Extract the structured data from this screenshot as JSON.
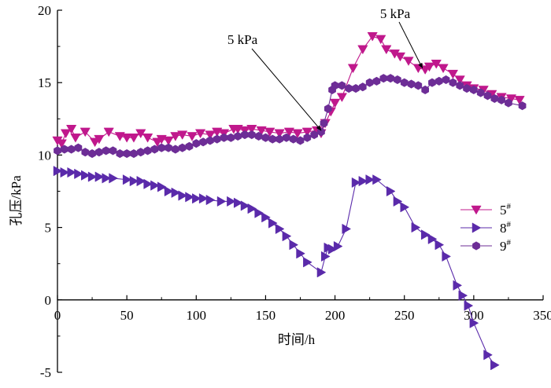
{
  "chart_data": {
    "type": "line",
    "title": "",
    "xlabel": "时间/h",
    "ylabel": "孔压/kPa",
    "xlim": [
      0,
      350
    ],
    "ylim": [
      -5,
      20
    ],
    "xticks": [
      0,
      50,
      100,
      150,
      200,
      250,
      300,
      350
    ],
    "yticks": [
      -5,
      0,
      5,
      10,
      15,
      20
    ],
    "grid": false,
    "legend_position": "right",
    "annotations": [
      {
        "text": "5 kPa",
        "at": [
          190,
          11.7
        ]
      },
      {
        "text": "5 kPa",
        "at": [
          263,
          16.0
        ]
      }
    ],
    "series": [
      {
        "name": "5#",
        "label_main": "5",
        "label_sup": "#",
        "marker": "triangle-down",
        "color": "#c0188c",
        "x": [
          0,
          3,
          6,
          10,
          13,
          20,
          27,
          30,
          37,
          45,
          50,
          55,
          60,
          65,
          72,
          75,
          80,
          85,
          90,
          97,
          103,
          110,
          115,
          120,
          127,
          130,
          135,
          140,
          147,
          153,
          160,
          167,
          173,
          180,
          187,
          190,
          193,
          197,
          200,
          205,
          213,
          220,
          227,
          233,
          237,
          243,
          247,
          253,
          260,
          265,
          268,
          273,
          278,
          285,
          290,
          295,
          300,
          307,
          313,
          320,
          327,
          333
        ],
        "y": [
          11.0,
          10.8,
          11.5,
          11.8,
          11.2,
          11.6,
          10.9,
          11.1,
          11.6,
          11.3,
          11.2,
          11.2,
          11.5,
          11.2,
          10.9,
          11.1,
          11.0,
          11.3,
          11.4,
          11.3,
          11.5,
          11.4,
          11.6,
          11.5,
          11.8,
          11.8,
          11.7,
          11.8,
          11.7,
          11.6,
          11.5,
          11.6,
          11.5,
          11.6,
          11.7,
          11.5,
          12.2,
          13.0,
          13.6,
          14.0,
          16.0,
          17.3,
          18.2,
          18.0,
          17.3,
          17.0,
          16.8,
          16.5,
          16.0,
          15.9,
          16.1,
          16.3,
          16.0,
          15.6,
          15.2,
          14.8,
          14.6,
          14.5,
          14.2,
          14.0,
          13.9,
          13.8
        ]
      },
      {
        "name": "8#",
        "label_main": "8",
        "label_sup": "#",
        "marker": "triangle-right",
        "color": "#5a2aaa",
        "x": [
          0,
          5,
          10,
          15,
          20,
          25,
          30,
          35,
          40,
          50,
          55,
          60,
          65,
          70,
          75,
          80,
          85,
          90,
          95,
          100,
          105,
          110,
          118,
          125,
          130,
          135,
          140,
          145,
          150,
          155,
          160,
          165,
          170,
          175,
          180,
          190,
          193,
          195,
          198,
          202,
          208,
          215,
          220,
          225,
          230,
          240,
          245,
          250,
          258,
          265,
          270,
          275,
          280,
          288,
          292,
          296,
          300,
          310,
          315
        ],
        "y": [
          8.9,
          8.8,
          8.8,
          8.7,
          8.6,
          8.5,
          8.5,
          8.4,
          8.4,
          8.3,
          8.2,
          8.2,
          8.0,
          7.9,
          7.8,
          7.5,
          7.4,
          7.2,
          7.1,
          7.0,
          7.0,
          6.9,
          6.8,
          6.8,
          6.7,
          6.5,
          6.3,
          6.0,
          5.7,
          5.3,
          4.9,
          4.4,
          3.8,
          3.2,
          2.6,
          1.9,
          3.0,
          3.6,
          3.5,
          3.7,
          4.9,
          8.1,
          8.2,
          8.3,
          8.3,
          7.5,
          6.8,
          6.4,
          5.0,
          4.5,
          4.2,
          3.8,
          3.0,
          1.0,
          0.3,
          -0.4,
          -1.6,
          -3.8,
          -4.5
        ]
      },
      {
        "name": "9#",
        "label_main": "9",
        "label_sup": "#",
        "marker": "hexagon",
        "color": "#6d2d96",
        "x": [
          0,
          5,
          10,
          15,
          20,
          25,
          30,
          35,
          40,
          45,
          50,
          55,
          60,
          65,
          70,
          75,
          80,
          85,
          90,
          95,
          100,
          105,
          110,
          115,
          120,
          125,
          130,
          135,
          140,
          145,
          150,
          155,
          160,
          165,
          170,
          175,
          180,
          185,
          190,
          192,
          195,
          198,
          200,
          205,
          210,
          215,
          220,
          225,
          230,
          235,
          240,
          245,
          250,
          255,
          260,
          265,
          270,
          275,
          280,
          285,
          290,
          295,
          300,
          305,
          310,
          315,
          320,
          325,
          335
        ],
        "y": [
          10.3,
          10.4,
          10.4,
          10.5,
          10.2,
          10.1,
          10.2,
          10.3,
          10.3,
          10.1,
          10.1,
          10.1,
          10.2,
          10.3,
          10.4,
          10.5,
          10.5,
          10.4,
          10.5,
          10.6,
          10.8,
          10.9,
          11.0,
          11.1,
          11.2,
          11.2,
          11.3,
          11.4,
          11.4,
          11.3,
          11.2,
          11.1,
          11.1,
          11.2,
          11.1,
          11.0,
          11.2,
          11.4,
          11.6,
          12.2,
          13.2,
          14.5,
          14.8,
          14.8,
          14.6,
          14.6,
          14.7,
          15.0,
          15.1,
          15.3,
          15.3,
          15.2,
          15.0,
          14.9,
          14.8,
          14.5,
          15.0,
          15.1,
          15.2,
          15.0,
          14.8,
          14.6,
          14.5,
          14.3,
          14.1,
          13.9,
          13.8,
          13.6,
          13.4
        ]
      }
    ]
  }
}
